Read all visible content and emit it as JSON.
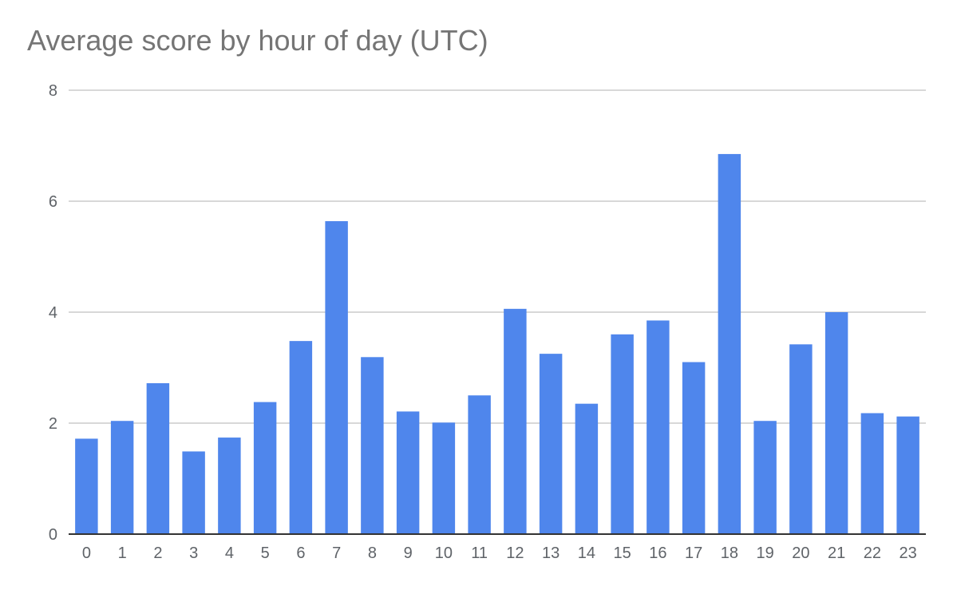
{
  "chart_data": {
    "type": "bar",
    "title": "Average score by hour of day (UTC)",
    "xlabel": "",
    "ylabel": "",
    "categories": [
      "0",
      "1",
      "2",
      "3",
      "4",
      "5",
      "6",
      "7",
      "8",
      "9",
      "10",
      "11",
      "12",
      "13",
      "14",
      "15",
      "16",
      "17",
      "18",
      "19",
      "20",
      "21",
      "22",
      "23"
    ],
    "values": [
      1.72,
      2.04,
      2.72,
      1.49,
      1.74,
      2.38,
      3.48,
      5.64,
      3.19,
      2.21,
      2.01,
      2.5,
      4.06,
      3.25,
      2.35,
      3.6,
      3.85,
      3.1,
      6.85,
      2.04,
      3.42,
      4.0,
      2.18,
      2.12
    ],
    "ylim": [
      0,
      8
    ],
    "yticks": [
      "0",
      "2",
      "4",
      "6",
      "8"
    ],
    "grid": true,
    "legend": "none",
    "bar_color": "#4f86ec",
    "grid_color": "#cccccc",
    "axis_color": "#333333"
  }
}
